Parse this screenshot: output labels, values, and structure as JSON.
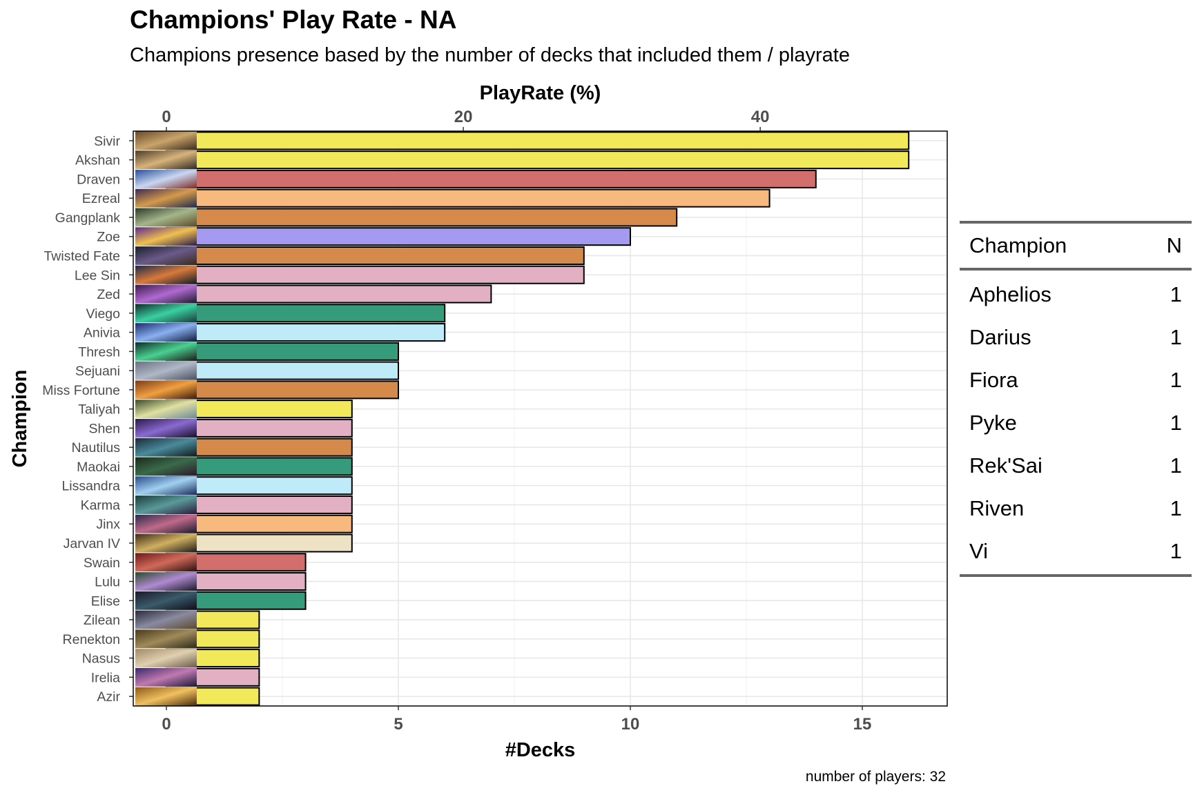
{
  "title": "Champions' Play Rate - NA",
  "subtitle": "Champions presence based by the number of decks that included them / playrate",
  "caption": "number of players: 32",
  "chart_data": {
    "type": "bar",
    "orientation": "horizontal",
    "xlabel": "#Decks",
    "ylabel": "Champion",
    "secondary_xlabel": "PlayRate (%)",
    "xlim": [
      0,
      17.5
    ],
    "x_ticks": [
      0,
      5,
      10,
      15
    ],
    "secondary_ticks_pct": [
      0,
      20,
      40
    ],
    "secondary_per_deck_pct": 3.125,
    "grid": true,
    "categories": [
      "Sivir",
      "Akshan",
      "Draven",
      "Ezreal",
      "Gangplank",
      "Zoe",
      "Twisted Fate",
      "Lee Sin",
      "Zed",
      "Viego",
      "Anivia",
      "Thresh",
      "Sejuani",
      "Miss Fortune",
      "Taliyah",
      "Shen",
      "Nautilus",
      "Maokai",
      "Lissandra",
      "Karma",
      "Jinx",
      "Jarvan IV",
      "Swain",
      "Lulu",
      "Elise",
      "Zilean",
      "Renekton",
      "Nasus",
      "Irelia",
      "Azir"
    ],
    "values": [
      16,
      16,
      14,
      13,
      11,
      10,
      9,
      9,
      7,
      6,
      6,
      5,
      5,
      5,
      4,
      4,
      4,
      4,
      4,
      4,
      4,
      4,
      3,
      3,
      3,
      2,
      2,
      2,
      2,
      2
    ],
    "colors": [
      "#F1E85A",
      "#F1E85A",
      "#D26E6B",
      "#F8B97E",
      "#D58A4B",
      "#A49BF0",
      "#D58A4B",
      "#E2B0C2",
      "#E2B0C2",
      "#359B7A",
      "#BFEAF8",
      "#359B7A",
      "#BFEAF8",
      "#D58A4B",
      "#F1E85A",
      "#E2B0C2",
      "#D58A4B",
      "#359B7A",
      "#BFEAF8",
      "#E2B0C2",
      "#F8B97E",
      "#EDE2C4",
      "#D26E6B",
      "#E2B0C2",
      "#359B7A",
      "#F1E85A",
      "#F1E85A",
      "#F1E85A",
      "#E2B0C2",
      "#F1E85A"
    ],
    "image_palette": [
      [
        "#6b4a2a",
        "#c9a46a",
        "#3a2a1d"
      ],
      [
        "#4a3b2a",
        "#d8b37a",
        "#2e2a24"
      ],
      [
        "#2a4f9a",
        "#c9d6f2",
        "#7b2d24"
      ],
      [
        "#3b2a52",
        "#d49a4a",
        "#1f2a4a"
      ],
      [
        "#2c3a2a",
        "#a5b58a",
        "#5b4a2a"
      ],
      [
        "#5a2a8a",
        "#f0c050",
        "#2a1a4a"
      ],
      [
        "#1a1f2a",
        "#6a5a8a",
        "#3a2a1a"
      ],
      [
        "#1a2a4a",
        "#d87a3a",
        "#0f1a2a"
      ],
      [
        "#3a1a4a",
        "#b06ad0",
        "#1a1a2a"
      ],
      [
        "#0f2a2a",
        "#3ad0a0",
        "#1a3a3a"
      ],
      [
        "#1a2a6a",
        "#8ab0f0",
        "#0f1a3a"
      ],
      [
        "#0f2a2a",
        "#4ad090",
        "#1a1a1a"
      ],
      [
        "#6a7080",
        "#b0b8c8",
        "#4a5060"
      ],
      [
        "#7a3a1a",
        "#f0a040",
        "#3a1a0a"
      ],
      [
        "#3a4a2a",
        "#e0e0a0",
        "#6a8a9a"
      ],
      [
        "#2a1a4a",
        "#8a6ad0",
        "#1a0f2a"
      ],
      [
        "#1a2a3a",
        "#4a8a9a",
        "#0f1a1a"
      ],
      [
        "#1a2a1a",
        "#3a6a4a",
        "#2a1a2a"
      ],
      [
        "#2a4a8a",
        "#a0d0f0",
        "#1a2a5a"
      ],
      [
        "#1a3a3a",
        "#5a9a9a",
        "#2a1a3a"
      ],
      [
        "#2a2a4a",
        "#c06a8a",
        "#1a1a2a"
      ],
      [
        "#3a2a1a",
        "#d0b060",
        "#1a1a1a"
      ],
      [
        "#6a1a1a",
        "#d06a5a",
        "#2a0f0f"
      ],
      [
        "#2a4a2a",
        "#b08ad0",
        "#1a1a2a"
      ],
      [
        "#1a1a2a",
        "#3a5a6a",
        "#0f0f1a"
      ],
      [
        "#2a2a3a",
        "#8a8aa0",
        "#5a4a2a"
      ],
      [
        "#4a3a1a",
        "#a08a5a",
        "#2a2a1a"
      ],
      [
        "#a08a6a",
        "#e0d0b0",
        "#6a5a4a"
      ],
      [
        "#3a2a6a",
        "#c07ab0",
        "#1a1a3a"
      ],
      [
        "#8a5a1a",
        "#f0c060",
        "#4a2a0a"
      ]
    ]
  },
  "unplotted_table": {
    "columns": [
      "Champion",
      "N"
    ],
    "rows": [
      {
        "champion": "Aphelios",
        "n": "1"
      },
      {
        "champion": "Darius",
        "n": "1"
      },
      {
        "champion": "Fiora",
        "n": "1"
      },
      {
        "champion": "Pyke",
        "n": "1"
      },
      {
        "champion": "Rek'Sai",
        "n": "1"
      },
      {
        "champion": "Riven",
        "n": "1"
      },
      {
        "champion": "Vi",
        "n": "1"
      }
    ]
  }
}
